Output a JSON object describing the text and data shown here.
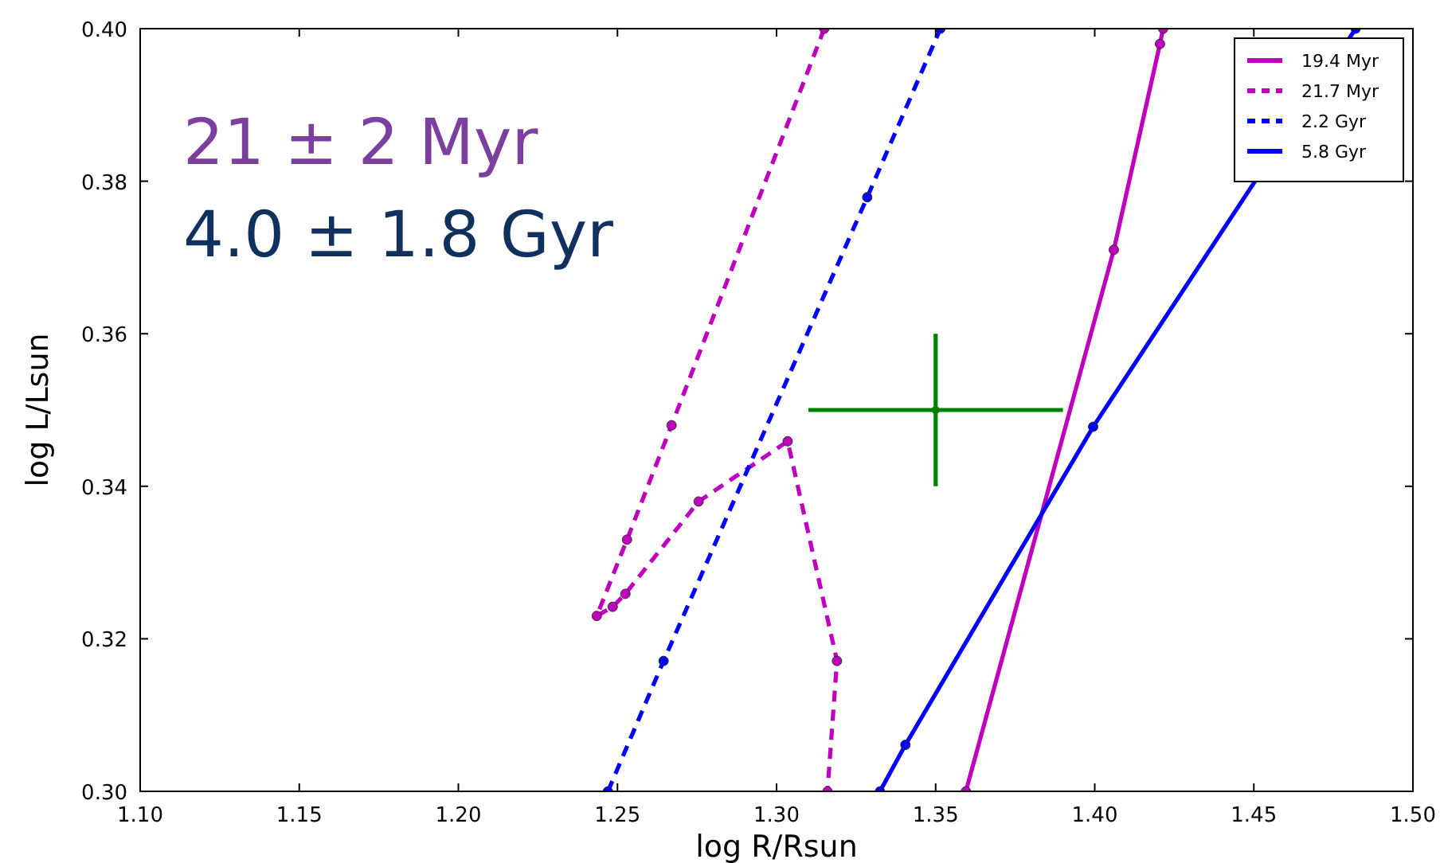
{
  "chart_data": {
    "type": "line",
    "xlabel": "log R/Rsun",
    "ylabel": "log L/Lsun",
    "xlim": [
      1.1,
      1.5
    ],
    "ylim": [
      0.3,
      0.4
    ],
    "xticks": [
      {
        "value": 1.1,
        "label": "1.10"
      },
      {
        "value": 1.15,
        "label": "1.15"
      },
      {
        "value": 1.2,
        "label": "1.20"
      },
      {
        "value": 1.25,
        "label": "1.25"
      },
      {
        "value": 1.3,
        "label": "1.30"
      },
      {
        "value": 1.35,
        "label": "1.35"
      },
      {
        "value": 1.4,
        "label": "1.40"
      },
      {
        "value": 1.45,
        "label": "1.45"
      },
      {
        "value": 1.5,
        "label": "1.50"
      }
    ],
    "yticks": [
      {
        "value": 0.3,
        "label": "0.30"
      },
      {
        "value": 0.32,
        "label": "0.32"
      },
      {
        "value": 0.34,
        "label": "0.34"
      },
      {
        "value": 0.36,
        "label": "0.36"
      },
      {
        "value": 0.38,
        "label": "0.38"
      },
      {
        "value": 0.4,
        "label": "0.40"
      }
    ],
    "grid": false,
    "legend": "top right",
    "marker": "circle",
    "annotations": [
      "21 ± 2 Myr",
      "4.0 ± 1.8 Gyr"
    ],
    "series": [
      {
        "name": "19.4 Myr",
        "color": "#bf00bf",
        "line_style": "solid",
        "x": [
          1.3595,
          1.406,
          1.4205,
          1.4215
        ],
        "values": [
          0.3,
          0.371,
          0.398,
          0.4
        ]
      },
      {
        "name": "21.7 Myr",
        "color": "#bf00bf",
        "line_style": "dashed",
        "x": [
          1.315,
          1.267,
          1.253,
          1.2435,
          1.2485,
          1.2525,
          1.2755,
          1.3035,
          1.319,
          1.316
        ],
        "values": [
          0.4,
          0.348,
          0.333,
          0.323,
          0.3242,
          0.3259,
          0.338,
          0.3459,
          0.3171,
          0.3
        ]
      },
      {
        "name": "2.2 Gyr",
        "color": "#0000ff",
        "line_style": "dashed",
        "x": [
          1.247,
          1.2645,
          1.3285,
          1.3515
        ],
        "values": [
          0.3,
          0.3171,
          0.3779,
          0.4
        ]
      },
      {
        "name": "5.8 Gyr",
        "color": "#0000ff",
        "line_style": "solid",
        "x": [
          1.3325,
          1.3405,
          1.3995,
          1.482
        ],
        "values": [
          0.3,
          0.3061,
          0.3478,
          0.4
        ]
      },
      {
        "type": "scatter",
        "color": "#008000",
        "x": [
          1.35
        ],
        "values": [
          0.35
        ],
        "errors": [
          0.01
        ],
        "xerrors": [
          0.04
        ]
      }
    ]
  }
}
